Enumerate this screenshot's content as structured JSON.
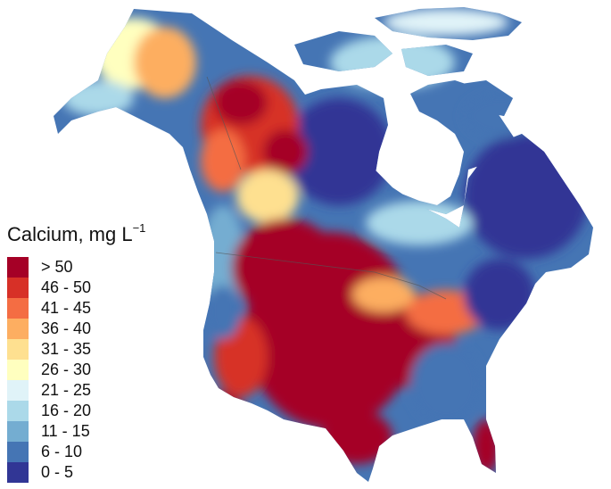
{
  "legend": {
    "title": "Calcium, mg L",
    "title_exponent": "−1",
    "items": [
      {
        "label": "> 50",
        "color": "#a50026"
      },
      {
        "label": "46 - 50",
        "color": "#d73027"
      },
      {
        "label": "41 - 45",
        "color": "#f46d43"
      },
      {
        "label": "36 - 40",
        "color": "#fdae61"
      },
      {
        "label": "31 - 35",
        "color": "#fee090"
      },
      {
        "label": "26 - 30",
        "color": "#ffffbf"
      },
      {
        "label": "21 - 25",
        "color": "#e0f3f8"
      },
      {
        "label": "16 - 20",
        "color": "#abd9e9"
      },
      {
        "label": "11 - 15",
        "color": "#74add1"
      },
      {
        "label": "6 - 10",
        "color": "#4575b4"
      },
      {
        "label": "0 - 5",
        "color": "#313695"
      }
    ]
  }
}
